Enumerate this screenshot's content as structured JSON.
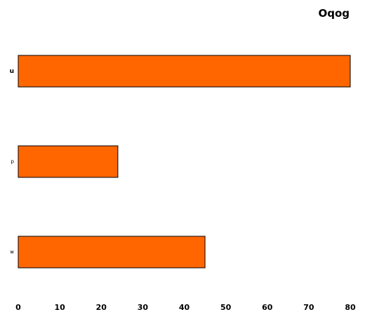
{
  "chart_data": {
    "type": "bar",
    "orientation": "horizontal",
    "title": "Oqog",
    "xlabel": "",
    "ylabel": "",
    "categories": [
      "u",
      "p",
      "w"
    ],
    "values": [
      80,
      24,
      45
    ],
    "xlim": [
      0,
      80
    ],
    "xticks": [
      0,
      10,
      20,
      30,
      40,
      50,
      60,
      70,
      80
    ],
    "bar_color": "#ff6600",
    "bar_edge_color": "#000000",
    "grid": false,
    "legend": "none"
  }
}
